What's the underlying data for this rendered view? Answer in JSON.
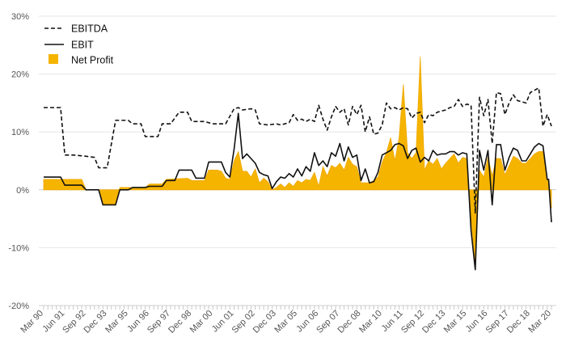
{
  "chart_data": {
    "type": "line",
    "x_start": "Mar 90",
    "x_end": "Mar 20",
    "ylim": [
      -20,
      30
    ],
    "yticks": [
      -20,
      -10,
      0,
      10,
      20,
      30
    ],
    "ytick_labels": [
      "-20%",
      "-10%",
      "0%",
      "10%",
      "20%",
      "30%"
    ],
    "xtick_labels": [
      "Mar 90",
      "Jun 91",
      "Sep 92",
      "Dec 93",
      "Mar 95",
      "Jun 96",
      "Sep 97",
      "Dec 98",
      "Mar 00",
      "Jun 01",
      "Sep 02",
      "Dec 03",
      "Mar 05",
      "Jun 06",
      "Sep 07",
      "Dec 08",
      "Mar 10",
      "Jun 11",
      "Sep 12",
      "Dec 13",
      "Mar 15",
      "Jun 16",
      "Sep 17",
      "Dec 18",
      "Mar 20"
    ],
    "grid": "horizontal",
    "legend_position": "top-left",
    "colors": {
      "ebitda": "#111111",
      "ebit": "#111111",
      "net_profit": "#f5b400",
      "net_profit_edge": "#f0a800"
    },
    "series": [
      {
        "name": "EBITDA",
        "style": "dashed",
        "points": [
          [
            "Mar 90",
            14.2
          ],
          [
            "Sep 90",
            14.2
          ],
          [
            "Mar 91",
            14.2
          ],
          [
            "Jun 91",
            6
          ],
          [
            "Dec 91",
            6
          ],
          [
            "Sep 92",
            5.8
          ],
          [
            "Mar 93",
            5.6
          ],
          [
            "Jun 93",
            3.8
          ],
          [
            "Dec 93",
            3.8
          ],
          [
            "Jun 94",
            12
          ],
          [
            "Mar 95",
            12
          ],
          [
            "Jun 95",
            11.4
          ],
          [
            "Dec 95",
            11.4
          ],
          [
            "Mar 96",
            9.2
          ],
          [
            "Jun 96",
            9.2
          ],
          [
            "Dec 96",
            9.2
          ],
          [
            "Mar 97",
            11.4
          ],
          [
            "Sep 97",
            11.4
          ],
          [
            "Mar 98",
            13.4
          ],
          [
            "Sep 98",
            13.4
          ],
          [
            "Dec 98",
            11.8
          ],
          [
            "Sep 99",
            11.8
          ],
          [
            "Mar 00",
            11.4
          ],
          [
            "Dec 00",
            11.4
          ],
          [
            "Jun 01",
            14
          ],
          [
            "Sep 01",
            14.2
          ],
          [
            "Dec 01",
            13.8
          ],
          [
            "Jun 02",
            14
          ],
          [
            "Sep 02",
            13.8
          ],
          [
            "Dec 02",
            11.4
          ],
          [
            "Jun 03",
            11.2
          ],
          [
            "Dec 03",
            11.4
          ],
          [
            "Mar 04",
            11.2
          ],
          [
            "Sep 04",
            11.6
          ],
          [
            "Dec 04",
            13
          ],
          [
            "Mar 05",
            12
          ],
          [
            "Jun 05",
            12.2
          ],
          [
            "Sep 05",
            11.8
          ],
          [
            "Dec 05",
            12.2
          ],
          [
            "Mar 06",
            11.8
          ],
          [
            "Jun 06",
            14.6
          ],
          [
            "Sep 06",
            12.2
          ],
          [
            "Dec 06",
            10.3
          ],
          [
            "Mar 07",
            12.6
          ],
          [
            "Jun 07",
            14.4
          ],
          [
            "Sep 07",
            13.4
          ],
          [
            "Dec 07",
            14
          ],
          [
            "Mar 08",
            11.2
          ],
          [
            "Jun 08",
            14.4
          ],
          [
            "Sep 08",
            13
          ],
          [
            "Dec 08",
            14.6
          ],
          [
            "Mar 09",
            10
          ],
          [
            "Jun 09",
            12.6
          ],
          [
            "Sep 09",
            9.6
          ],
          [
            "Dec 09",
            9.8
          ],
          [
            "Mar 10",
            11.2
          ],
          [
            "Jun 10",
            15
          ],
          [
            "Sep 10",
            14
          ],
          [
            "Dec 10",
            14.2
          ],
          [
            "Mar 11",
            13.8
          ],
          [
            "Jun 11",
            14.2
          ],
          [
            "Sep 11",
            14
          ],
          [
            "Dec 11",
            12.4
          ],
          [
            "Mar 12",
            13.2
          ],
          [
            "Jun 12",
            13.4
          ],
          [
            "Sep 12",
            11.6
          ],
          [
            "Dec 12",
            13
          ],
          [
            "Mar 13",
            12.8
          ],
          [
            "Jun 13",
            13.4
          ],
          [
            "Dec 13",
            13.8
          ],
          [
            "Mar 14",
            14.2
          ],
          [
            "Jun 14",
            14.4
          ],
          [
            "Sep 14",
            15.6
          ],
          [
            "Dec 14",
            14.4
          ],
          [
            "Mar 15",
            14.8
          ],
          [
            "Jun 15",
            14.6
          ],
          [
            "Sep 15",
            -4
          ],
          [
            "Dec 15",
            16
          ],
          [
            "Mar 16",
            12.8
          ],
          [
            "Jun 16",
            15.6
          ],
          [
            "Sep 16",
            8
          ],
          [
            "Dec 16",
            16.8
          ],
          [
            "Mar 17",
            16.6
          ],
          [
            "Jun 17",
            13
          ],
          [
            "Sep 17",
            15
          ],
          [
            "Dec 17",
            16.4
          ],
          [
            "Mar 18",
            15.4
          ],
          [
            "Sep 18",
            15
          ],
          [
            "Dec 18",
            16.8
          ],
          [
            "Mar 19",
            17.2
          ],
          [
            "Jun 19",
            17.6
          ],
          [
            "Sep 19",
            11
          ],
          [
            "Dec 19",
            13
          ],
          [
            "Mar 20",
            11
          ]
        ]
      },
      {
        "name": "EBIT",
        "style": "solid",
        "points": [
          [
            "Mar 90",
            2.2
          ],
          [
            "Mar 91",
            2.2
          ],
          [
            "Jun 91",
            0.8
          ],
          [
            "Jun 92",
            0.8
          ],
          [
            "Sep 92",
            0
          ],
          [
            "Jun 93",
            0
          ],
          [
            "Sep 93",
            -2.6
          ],
          [
            "Jun 94",
            -2.6
          ],
          [
            "Sep 94",
            0
          ],
          [
            "Dec 94",
            0
          ],
          [
            "Mar 95",
            0
          ],
          [
            "Jun 95",
            0.4
          ],
          [
            "Mar 96",
            0.4
          ],
          [
            "Jun 96",
            0.6
          ],
          [
            "Mar 97",
            0.6
          ],
          [
            "Jun 97",
            1.6
          ],
          [
            "Dec 97",
            1.6
          ],
          [
            "Mar 98",
            3.4
          ],
          [
            "Jun 98",
            3.4
          ],
          [
            "Dec 98",
            3.4
          ],
          [
            "Mar 99",
            2
          ],
          [
            "Sep 99",
            2
          ],
          [
            "Dec 99",
            4.8
          ],
          [
            "Jun 00",
            4.8
          ],
          [
            "Sep 00",
            4.8
          ],
          [
            "Dec 00",
            3
          ],
          [
            "Mar 01",
            2.2
          ],
          [
            "Jun 01",
            7
          ],
          [
            "Sep 01",
            13.2
          ],
          [
            "Dec 01",
            5.4
          ],
          [
            "Mar 02",
            6.2
          ],
          [
            "Jun 02",
            5.4
          ],
          [
            "Sep 02",
            4.6
          ],
          [
            "Dec 02",
            3
          ],
          [
            "Mar 03",
            2.6
          ],
          [
            "Jun 03",
            2.4
          ],
          [
            "Sep 03",
            0.2
          ],
          [
            "Dec 03",
            1.4
          ],
          [
            "Mar 04",
            2.2
          ],
          [
            "Jun 04",
            2
          ],
          [
            "Sep 04",
            2.8
          ],
          [
            "Dec 04",
            2.2
          ],
          [
            "Mar 05",
            3.6
          ],
          [
            "Jun 05",
            2.4
          ],
          [
            "Sep 05",
            4
          ],
          [
            "Dec 05",
            3.2
          ],
          [
            "Mar 06",
            6.4
          ],
          [
            "Jun 06",
            4.2
          ],
          [
            "Sep 06",
            5
          ],
          [
            "Dec 06",
            4
          ],
          [
            "Mar 07",
            6.4
          ],
          [
            "Jun 07",
            5.8
          ],
          [
            "Sep 07",
            8
          ],
          [
            "Dec 07",
            5
          ],
          [
            "Mar 08",
            7.4
          ],
          [
            "Jun 08",
            5.6
          ],
          [
            "Sep 08",
            6
          ],
          [
            "Dec 08",
            1.6
          ],
          [
            "Mar 09",
            3.6
          ],
          [
            "Jun 09",
            1.2
          ],
          [
            "Sep 09",
            1.4
          ],
          [
            "Dec 09",
            3
          ],
          [
            "Mar 10",
            6
          ],
          [
            "Jun 10",
            6.4
          ],
          [
            "Sep 10",
            6.8
          ],
          [
            "Dec 10",
            7.8
          ],
          [
            "Mar 11",
            8
          ],
          [
            "Jun 11",
            7.6
          ],
          [
            "Sep 11",
            5.4
          ],
          [
            "Dec 11",
            6.8
          ],
          [
            "Mar 12",
            7.2
          ],
          [
            "Jun 12",
            4.8
          ],
          [
            "Sep 12",
            5.6
          ],
          [
            "Dec 12",
            5
          ],
          [
            "Mar 13",
            6.8
          ],
          [
            "Jun 13",
            6
          ],
          [
            "Sep 13",
            6.2
          ],
          [
            "Dec 13",
            6.2
          ],
          [
            "Mar 14",
            6.6
          ],
          [
            "Jun 14",
            6.6
          ],
          [
            "Sep 14",
            6
          ],
          [
            "Dec 14",
            6.4
          ],
          [
            "Mar 15",
            6.2
          ],
          [
            "Jun 15",
            -7
          ],
          [
            "Sep 15",
            -13.8
          ],
          [
            "Dec 15",
            6.8
          ],
          [
            "Mar 16",
            3.4
          ],
          [
            "Jun 16",
            6.8
          ],
          [
            "Sep 16",
            -2.6
          ],
          [
            "Dec 16",
            7.8
          ],
          [
            "Mar 17",
            7.8
          ],
          [
            "Jun 17",
            3.4
          ],
          [
            "Sep 17",
            5.6
          ],
          [
            "Dec 17",
            7.2
          ],
          [
            "Mar 18",
            6.8
          ],
          [
            "Jun 18",
            5
          ],
          [
            "Sep 18",
            5
          ],
          [
            "Dec 18",
            6.2
          ],
          [
            "Mar 19",
            7.4
          ],
          [
            "Jun 19",
            8
          ],
          [
            "Sep 19",
            7.6
          ],
          [
            "Dec 19",
            1.8
          ],
          [
            "Jan 20",
            1.8
          ],
          [
            "Mar 20",
            -5.6
          ]
        ]
      },
      {
        "name": "Net Profit",
        "style": "area",
        "points": [
          [
            "Mar 90",
            1.8
          ],
          [
            "Jun 92",
            1.8
          ],
          [
            "Sep 92",
            0
          ],
          [
            "Jun 93",
            0
          ],
          [
            "Sep 93",
            -2.6
          ],
          [
            "Jun 94",
            -2.6
          ],
          [
            "Sep 94",
            0.4
          ],
          [
            "Mar 96",
            0.4
          ],
          [
            "Jun 96",
            1
          ],
          [
            "Mar 97",
            1
          ],
          [
            "Jun 97",
            1.8
          ],
          [
            "Sep 98",
            2
          ],
          [
            "Dec 98",
            1.6
          ],
          [
            "Jun 99",
            1.6
          ],
          [
            "Sep 99",
            1.6
          ],
          [
            "Dec 99",
            3.4
          ],
          [
            "Jun 00",
            3.4
          ],
          [
            "Sep 00",
            3.2
          ],
          [
            "Dec 00",
            2
          ],
          [
            "Mar 01",
            1.8
          ],
          [
            "Jun 01",
            5
          ],
          [
            "Sep 01",
            6.6
          ],
          [
            "Dec 01",
            3.2
          ],
          [
            "Mar 02",
            3.2
          ],
          [
            "Jun 02",
            2.2
          ],
          [
            "Sep 02",
            3.6
          ],
          [
            "Dec 02",
            1.2
          ],
          [
            "Mar 03",
            2
          ],
          [
            "Jun 03",
            1.4
          ],
          [
            "Sep 03",
            0
          ],
          [
            "Dec 03",
            0.4
          ],
          [
            "Mar 04",
            1
          ],
          [
            "Jun 04",
            0.4
          ],
          [
            "Sep 04",
            1.2
          ],
          [
            "Dec 04",
            0.6
          ],
          [
            "Mar 05",
            1.6
          ],
          [
            "Jun 05",
            1.2
          ],
          [
            "Sep 05",
            1.8
          ],
          [
            "Dec 05",
            1.6
          ],
          [
            "Mar 06",
            3
          ],
          [
            "Jun 06",
            0.6
          ],
          [
            "Sep 06",
            4
          ],
          [
            "Dec 06",
            2.4
          ],
          [
            "Mar 07",
            4.2
          ],
          [
            "Jun 07",
            3.8
          ],
          [
            "Sep 07",
            4.6
          ],
          [
            "Dec 07",
            3.4
          ],
          [
            "Mar 08",
            5.6
          ],
          [
            "Jun 08",
            4.4
          ],
          [
            "Sep 08",
            4
          ],
          [
            "Dec 08",
            1.2
          ],
          [
            "Mar 09",
            1.2
          ],
          [
            "Jun 09",
            1.2
          ],
          [
            "Sep 09",
            1.6
          ],
          [
            "Dec 09",
            2.2
          ],
          [
            "Mar 10",
            4.8
          ],
          [
            "Jun 10",
            6.4
          ],
          [
            "Sep 10",
            9
          ],
          [
            "Dec 10",
            5
          ],
          [
            "Mar 11",
            9
          ],
          [
            "Jun 11",
            18.2
          ],
          [
            "Sep 11",
            6.4
          ],
          [
            "Dec 11",
            5.4
          ],
          [
            "Mar 12",
            6.4
          ],
          [
            "Jun 12",
            23
          ],
          [
            "Sep 12",
            3.4
          ],
          [
            "Dec 12",
            5
          ],
          [
            "Mar 13",
            4.4
          ],
          [
            "Jun 13",
            5.4
          ],
          [
            "Sep 13",
            3.6
          ],
          [
            "Dec 13",
            4.6
          ],
          [
            "Mar 14",
            5.4
          ],
          [
            "Jun 14",
            6.2
          ],
          [
            "Sep 14",
            4.6
          ],
          [
            "Dec 14",
            5.6
          ],
          [
            "Mar 15",
            5.4
          ],
          [
            "Jun 15",
            -5
          ],
          [
            "Sep 15",
            -12.6
          ],
          [
            "Dec 15",
            3.4
          ],
          [
            "Mar 16",
            2.2
          ],
          [
            "Jun 16",
            5.6
          ],
          [
            "Sep 16",
            2.4
          ],
          [
            "Dec 16",
            5.4
          ],
          [
            "Mar 17",
            5.4
          ],
          [
            "Jun 17",
            2.6
          ],
          [
            "Sep 17",
            4.2
          ],
          [
            "Dec 17",
            5.8
          ],
          [
            "Mar 18",
            5.4
          ],
          [
            "Jun 18",
            4.6
          ],
          [
            "Sep 18",
            4.6
          ],
          [
            "Dec 18",
            5.4
          ],
          [
            "Mar 19",
            6.2
          ],
          [
            "Jun 19",
            6.6
          ],
          [
            "Sep 19",
            6.6
          ],
          [
            "Dec 19",
            1.8
          ],
          [
            "Jan 20",
            1.8
          ],
          [
            "Mar 20",
            -3.2
          ]
        ]
      }
    ]
  }
}
